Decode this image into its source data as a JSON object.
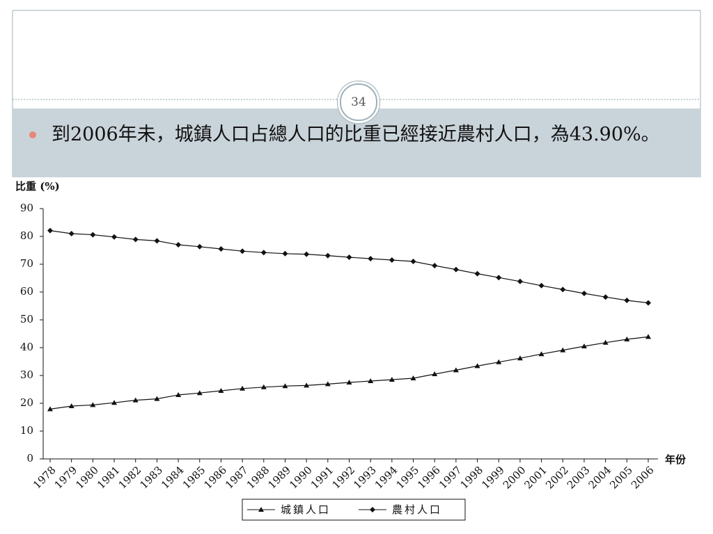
{
  "slide_number": "34",
  "bullet": "到2006年未，城鎮人口占總人口的比重已經接近農村人口，為43.90%。",
  "chart_data": {
    "type": "line",
    "y_label": "比重 (%)",
    "x_label": "年份",
    "categories": [
      "1978",
      "1979",
      "1980",
      "1981",
      "1982",
      "1983",
      "1984",
      "1985",
      "1986",
      "1987",
      "1988",
      "1989",
      "1990",
      "1991",
      "1992",
      "1993",
      "1994",
      "1995",
      "1996",
      "1997",
      "1998",
      "1999",
      "2000",
      "2001",
      "2002",
      "2003",
      "2004",
      "2005",
      "2006"
    ],
    "series": [
      {
        "name": "城鎮人口",
        "color": "#111111",
        "marker": "triangle",
        "values": [
          17.9,
          19.0,
          19.4,
          20.2,
          21.1,
          21.6,
          23.0,
          23.7,
          24.5,
          25.3,
          25.8,
          26.2,
          26.4,
          26.9,
          27.5,
          28.0,
          28.5,
          29.0,
          30.5,
          31.9,
          33.4,
          34.8,
          36.2,
          37.7,
          39.1,
          40.5,
          41.8,
          43.0,
          43.9
        ]
      },
      {
        "name": "農村人口",
        "color": "#111111",
        "marker": "diamond",
        "values": [
          82.1,
          81.0,
          80.6,
          79.8,
          78.9,
          78.4,
          77.0,
          76.3,
          75.5,
          74.7,
          74.2,
          73.8,
          73.6,
          73.1,
          72.5,
          72.0,
          71.5,
          71.0,
          69.5,
          68.1,
          66.6,
          65.2,
          63.8,
          62.3,
          60.9,
          59.5,
          58.2,
          57.0,
          56.1
        ]
      }
    ],
    "ylim": [
      0,
      90
    ],
    "yticks": [
      0,
      10,
      20,
      30,
      40,
      50,
      60,
      70,
      80,
      90
    ],
    "grid": false,
    "legend": "bottom"
  }
}
